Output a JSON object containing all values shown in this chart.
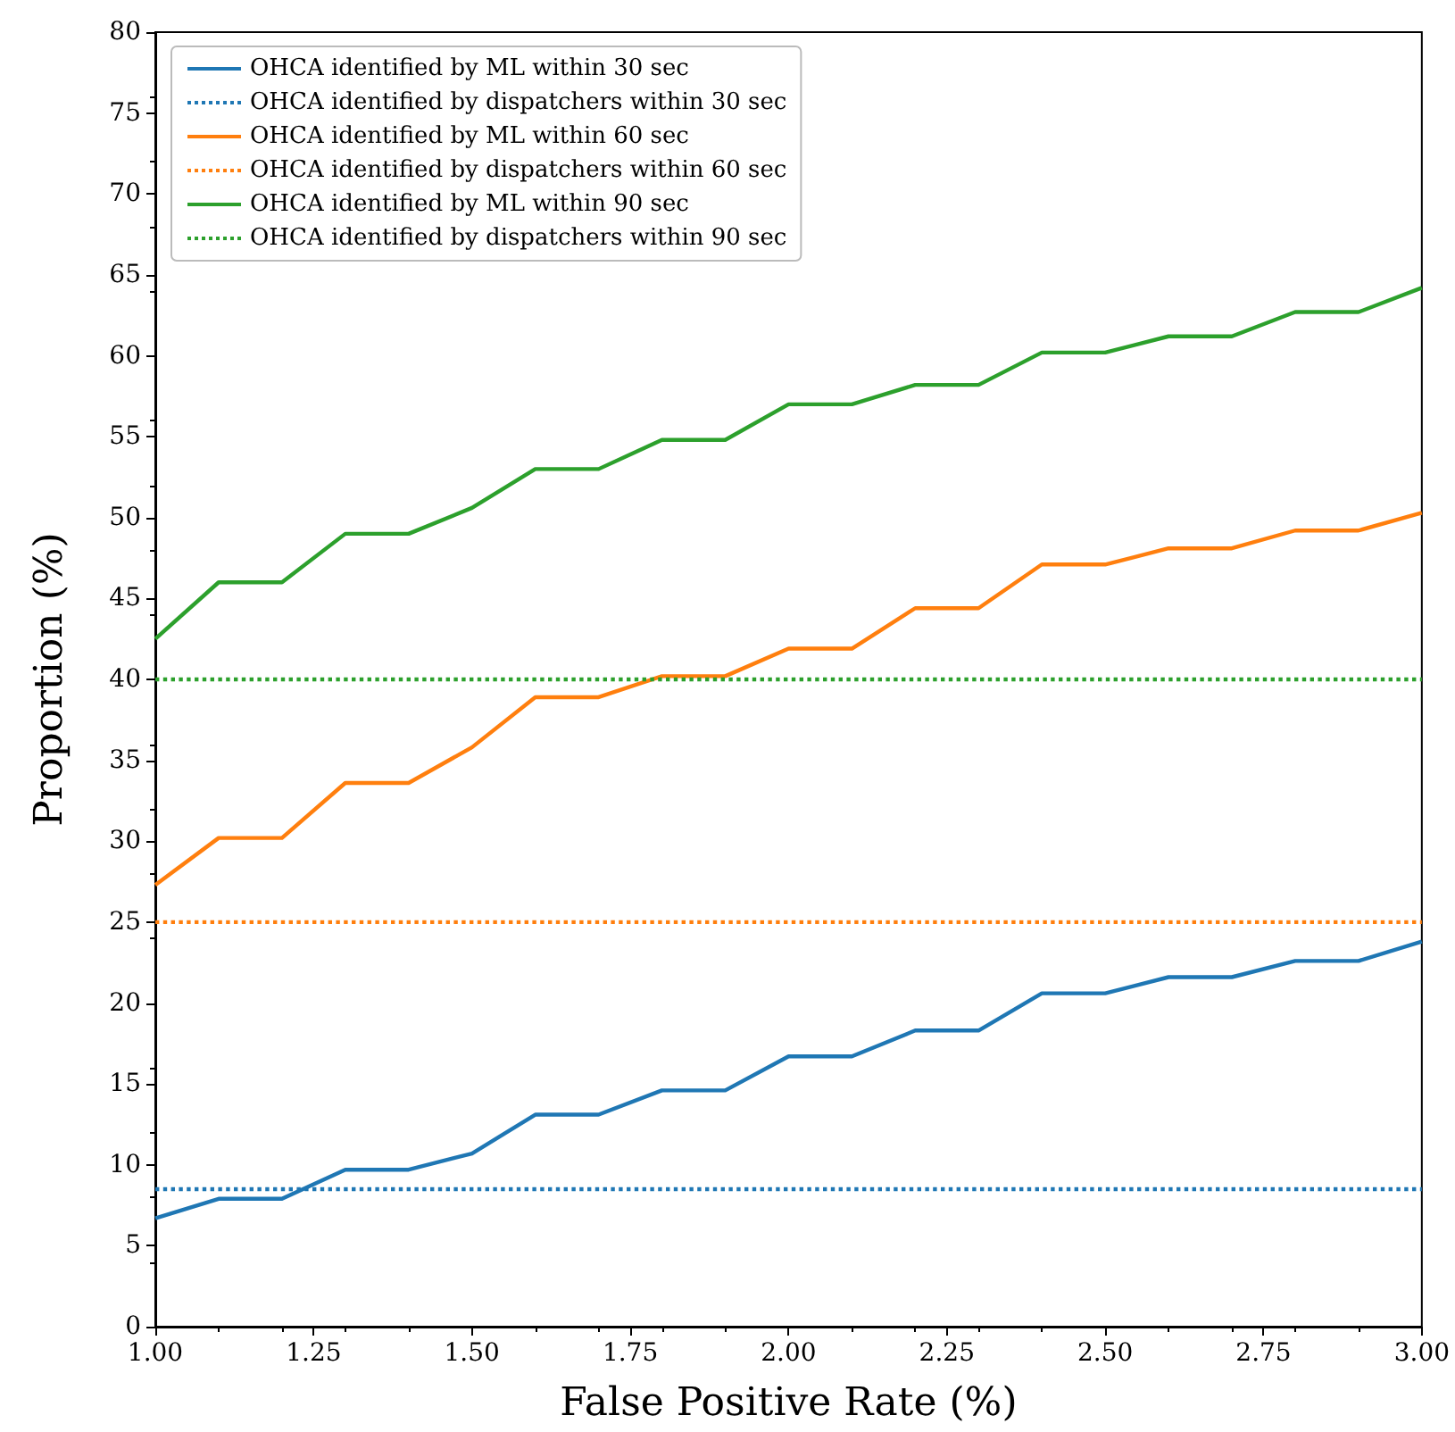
{
  "chart_data": {
    "type": "line",
    "xlabel": "False Positive Rate (%)",
    "ylabel": "Proportion (%)",
    "x": [
      1.0,
      1.1,
      1.2,
      1.3,
      1.4,
      1.5,
      1.6,
      1.7,
      1.8,
      1.9,
      2.0,
      2.1,
      2.2,
      2.3,
      2.4,
      2.5,
      2.6,
      2.7,
      2.8,
      2.9,
      3.0
    ],
    "series": [
      {
        "name": "OHCA identified by ML within 30 sec",
        "color": "#1f77b4",
        "line_style": "solid",
        "values": [
          6.7,
          7.9,
          7.9,
          9.7,
          9.7,
          10.7,
          13.1,
          13.1,
          14.6,
          14.6,
          16.7,
          16.7,
          18.3,
          18.3,
          20.6,
          20.6,
          21.6,
          21.6,
          22.6,
          22.6,
          23.8
        ]
      },
      {
        "name": "OHCA identified by dispatchers within 30 sec",
        "color": "#1f77b4",
        "line_style": "dotted",
        "values": [
          8.5,
          8.5,
          8.5,
          8.5,
          8.5,
          8.5,
          8.5,
          8.5,
          8.5,
          8.5,
          8.5,
          8.5,
          8.5,
          8.5,
          8.5,
          8.5,
          8.5,
          8.5,
          8.5,
          8.5,
          8.5
        ]
      },
      {
        "name": "OHCA identified by ML within 60 sec",
        "color": "#ff7f0e",
        "line_style": "solid",
        "values": [
          27.3,
          30.2,
          30.2,
          33.6,
          33.6,
          35.8,
          38.9,
          38.9,
          40.2,
          40.2,
          41.9,
          41.9,
          44.4,
          44.4,
          47.1,
          47.1,
          48.1,
          48.1,
          49.2,
          49.2,
          50.3
        ]
      },
      {
        "name": "OHCA identified by dispatchers within 60 sec",
        "color": "#ff7f0e",
        "line_style": "dotted",
        "values": [
          25,
          25,
          25,
          25,
          25,
          25,
          25,
          25,
          25,
          25,
          25,
          25,
          25,
          25,
          25,
          25,
          25,
          25,
          25,
          25,
          25
        ]
      },
      {
        "name": "OHCA identified by ML within 90 sec",
        "color": "#2ca02c",
        "line_style": "solid",
        "values": [
          42.5,
          46,
          46,
          49,
          49,
          50.6,
          53,
          53,
          54.8,
          54.8,
          57,
          57,
          58.2,
          58.2,
          60.2,
          60.2,
          61.2,
          61.2,
          62.7,
          62.7,
          64.2
        ]
      },
      {
        "name": "OHCA identified by dispatchers within 90 sec",
        "color": "#2ca02c",
        "line_style": "dotted",
        "values": [
          40,
          40,
          40,
          40,
          40,
          40,
          40,
          40,
          40,
          40,
          40,
          40,
          40,
          40,
          40,
          40,
          40,
          40,
          40,
          40,
          40
        ]
      }
    ],
    "xlim": [
      1.0,
      3.0
    ],
    "xticks": [
      {
        "value": 1.0,
        "label": "1.00"
      },
      {
        "value": 1.25,
        "label": "1.25"
      },
      {
        "value": 1.5,
        "label": "1.50"
      },
      {
        "value": 1.75,
        "label": "1.75"
      },
      {
        "value": 2.0,
        "label": "2.00"
      },
      {
        "value": 2.25,
        "label": "2.25"
      },
      {
        "value": 2.5,
        "label": "2.50"
      },
      {
        "value": 2.75,
        "label": "2.75"
      },
      {
        "value": 3.0,
        "label": "3.00"
      }
    ],
    "ylim": [
      0,
      80
    ],
    "yticks": [
      0,
      5,
      10,
      15,
      20,
      25,
      30,
      35,
      40,
      45,
      50,
      55,
      60,
      65,
      70,
      75,
      80
    ],
    "grid": false,
    "legend": "top left",
    "marker": "none"
  }
}
